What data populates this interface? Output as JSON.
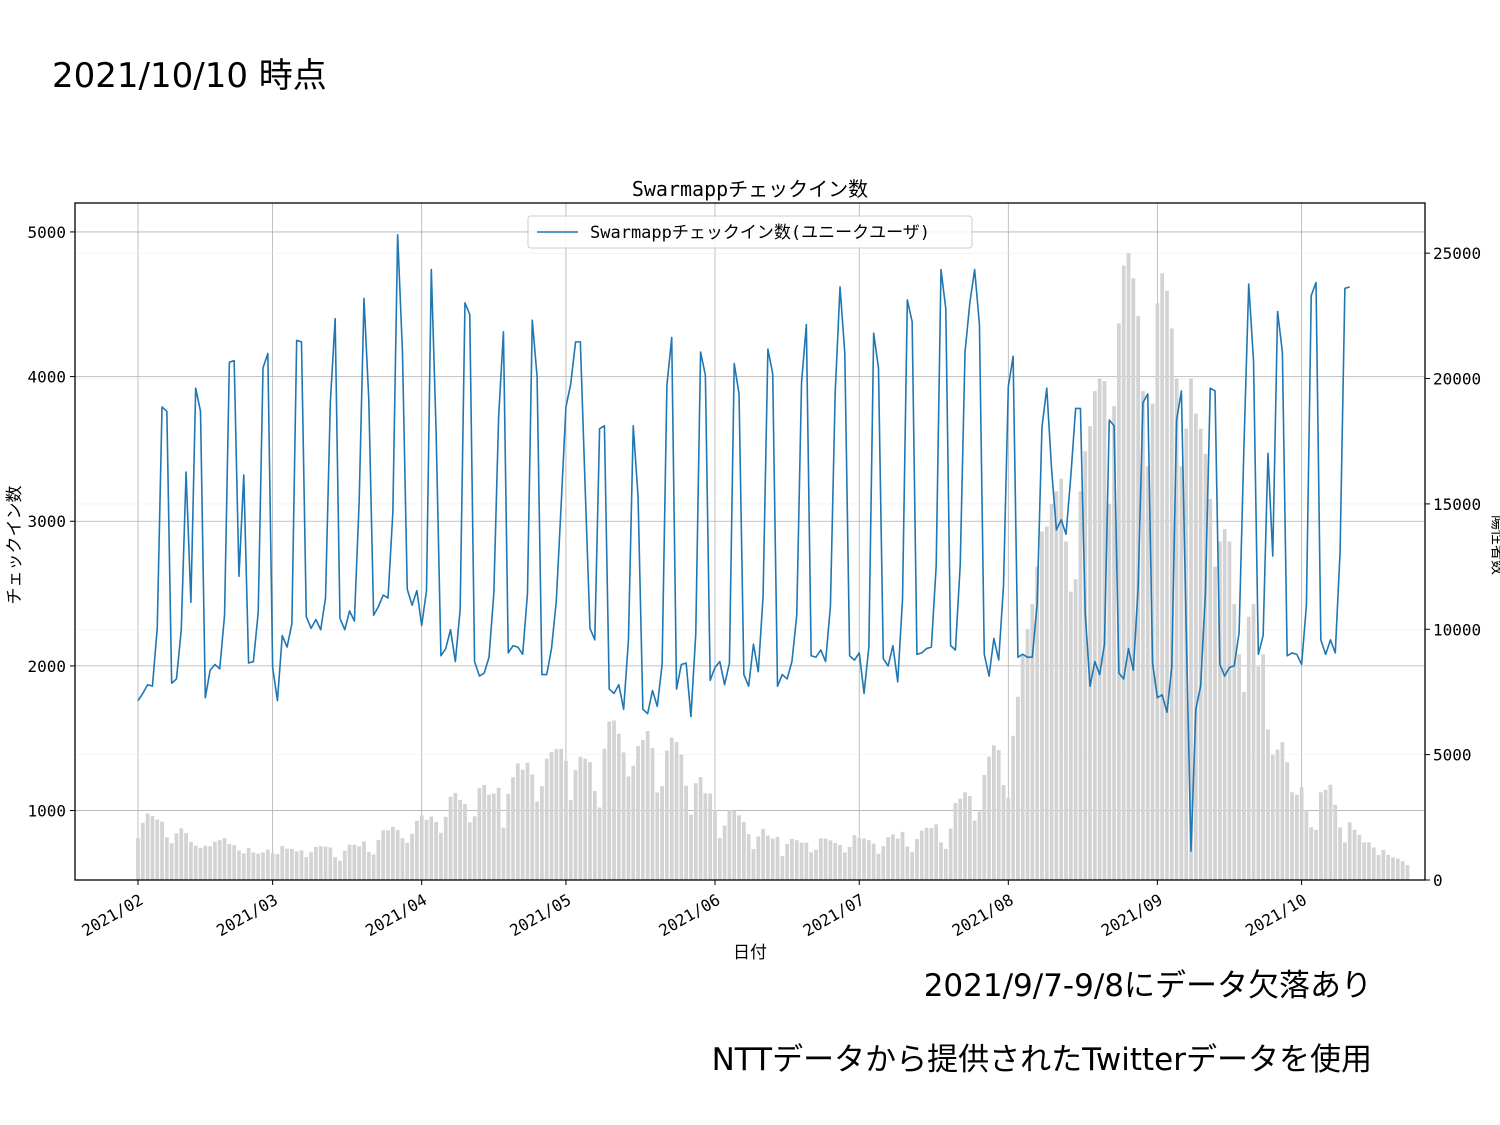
{
  "slide": {
    "title": "2021/10/10 時点",
    "note_missing": "2021/9/7-9/8にデータ欠落あり",
    "note_source": "NTTデータから提供されたTwitterデータを使用"
  },
  "chart_data": {
    "type": "line+bar",
    "title": "Swarmappチェックイン数",
    "xlabel": "日付",
    "ylabel_left": "チェックイン数",
    "ylabel_right": "陽性者数",
    "legend": [
      "Swarmappチェックイン数(ユニークユーザ)"
    ],
    "legend_position": "top-center",
    "grid": true,
    "start_date": "2021-02-01",
    "ylim_left": [
      520,
      5200
    ],
    "ylim_right": [
      0,
      27000
    ],
    "yticks_left": [
      1000,
      2000,
      3000,
      4000,
      5000
    ],
    "yticks_right": [
      0,
      5000,
      10000,
      15000,
      20000,
      25000
    ],
    "xtick_labels": [
      "2021/02",
      "2021/03",
      "2021/04",
      "2021/05",
      "2021/06",
      "2021/07",
      "2021/08",
      "2021/09",
      "2021/10"
    ],
    "xtick_dates": [
      "2021-02-01",
      "2021-03-01",
      "2021-04-01",
      "2021-05-01",
      "2021-06-01",
      "2021-07-01",
      "2021-08-01",
      "2021-09-01",
      "2021-10-01"
    ],
    "colors": {
      "line": "#1f77b4",
      "bars": "#d3d3d3",
      "grid": "#b0b0b0"
    },
    "series": [
      {
        "name": "Swarmappチェックイン数(ユニークユーザ)",
        "kind": "line",
        "axis": "left",
        "values": [
          1760,
          1810,
          1870,
          1860,
          2260,
          3790,
          3760,
          1880,
          1910,
          2250,
          3340,
          2440,
          3920,
          3760,
          1780,
          1970,
          2010,
          1980,
          2350,
          4100,
          4110,
          2620,
          3320,
          2020,
          2030,
          2370,
          4060,
          4160,
          1990,
          1760,
          2210,
          2130,
          2290,
          4250,
          4240,
          2340,
          2260,
          2320,
          2250,
          2470,
          3820,
          4400,
          2330,
          2250,
          2380,
          2310,
          3140,
          4540,
          3840,
          2350,
          2410,
          2490,
          2470,
          3060,
          4980,
          4170,
          2530,
          2420,
          2520,
          2280,
          2520,
          4740,
          3620,
          2070,
          2120,
          2250,
          2030,
          2390,
          4510,
          4430,
          2030,
          1930,
          1950,
          2060,
          2500,
          3720,
          4310,
          2090,
          2140,
          2130,
          2080,
          2500,
          4390,
          4000,
          1940,
          1940,
          2120,
          2450,
          3110,
          3790,
          3950,
          4240,
          4240,
          3230,
          2260,
          2180,
          3640,
          3660,
          1840,
          1810,
          1870,
          1700,
          2180,
          3660,
          3170,
          1700,
          1670,
          1830,
          1720,
          2010,
          3940,
          4270,
          1840,
          2010,
          2020,
          1650,
          2220,
          4170,
          4010,
          1900,
          1990,
          2030,
          1870,
          2020,
          4090,
          3880,
          1940,
          1860,
          2150,
          1960,
          2480,
          4190,
          4020,
          1860,
          1940,
          1910,
          2030,
          2350,
          3960,
          4360,
          2070,
          2060,
          2110,
          2030,
          2410,
          3890,
          4620,
          4160,
          2070,
          2040,
          2090,
          1810,
          2130,
          4300,
          4060,
          2050,
          2000,
          2140,
          1890,
          2460,
          4530,
          4380,
          2080,
          2090,
          2120,
          2130,
          2690,
          4740,
          4470,
          2140,
          2110,
          2700,
          4170,
          4510,
          4740,
          4360,
          2080,
          1930,
          2190,
          2040,
          2550,
          3930,
          4140,
          2060,
          2080,
          2060,
          2060,
          2430,
          3650,
          3920,
          3360,
          2940,
          3010,
          2910,
          3310,
          3780,
          3780,
          2360,
          1860,
          2030,
          1940,
          2150,
          3700,
          3660,
          1950,
          1910,
          2120,
          1970,
          2540,
          3820,
          3880,
          2020,
          1780,
          1800,
          1680,
          1990,
          3700,
          3900,
          2250,
          720,
          1700,
          1860,
          2510,
          3920,
          3900,
          2010,
          1930,
          1990,
          2000,
          2230,
          3510,
          4640,
          4110,
          2080,
          2210,
          3470,
          2760,
          4450,
          4170,
          2070,
          2090,
          2080,
          2010,
          2420,
          4560,
          4650,
          2180,
          2080,
          2180,
          2090,
          2790,
          4610,
          4620
        ]
      },
      {
        "name": "陽性者数",
        "kind": "bar",
        "axis": "right",
        "values": [
          1680,
          2280,
          2650,
          2550,
          2410,
          2330,
          1700,
          1470,
          1860,
          2060,
          1870,
          1520,
          1370,
          1280,
          1370,
          1350,
          1530,
          1590,
          1670,
          1440,
          1390,
          1180,
          1060,
          1280,
          1100,
          1050,
          1100,
          1210,
          1070,
          1030,
          1360,
          1250,
          1240,
          1140,
          1180,
          920,
          1110,
          1320,
          1350,
          1330,
          1300,
          910,
          770,
          1170,
          1410,
          1410,
          1340,
          1540,
          1120,
          1020,
          1600,
          1980,
          1980,
          2120,
          1990,
          1670,
          1480,
          1840,
          2360,
          2570,
          2400,
          2530,
          2310,
          1880,
          2520,
          3320,
          3470,
          3190,
          3030,
          2300,
          2540,
          3660,
          3790,
          3400,
          3450,
          3680,
          2090,
          3440,
          4100,
          4650,
          4400,
          4680,
          4210,
          3130,
          3740,
          4840,
          5110,
          5220,
          5230,
          4750,
          3190,
          4380,
          4920,
          4840,
          4700,
          3550,
          2890,
          5230,
          6320,
          6360,
          5830,
          5090,
          4130,
          4560,
          5340,
          5580,
          5940,
          5270,
          3490,
          3740,
          5160,
          5680,
          5500,
          5010,
          3760,
          2610,
          3860,
          4100,
          3460,
          3450,
          2780,
          1680,
          2170,
          2790,
          2760,
          2580,
          2310,
          1830,
          1230,
          1740,
          2030,
          1770,
          1650,
          1720,
          960,
          1440,
          1640,
          1590,
          1490,
          1490,
          1110,
          1200,
          1660,
          1650,
          1580,
          1480,
          1400,
          1100,
          1320,
          1790,
          1680,
          1650,
          1590,
          1450,
          1050,
          1350,
          1710,
          1820,
          1650,
          1920,
          1340,
          1110,
          1640,
          1970,
          2080,
          2070,
          2220,
          1500,
          1240,
          2050,
          3070,
          3240,
          3500,
          3350,
          2370,
          2730,
          4190,
          4920,
          5370,
          5180,
          3790,
          3280,
          5750,
          7310,
          9000,
          10000,
          11000,
          12500,
          13900,
          14100,
          15000,
          15500,
          16000,
          13500,
          11500,
          12000,
          15500,
          17100,
          18100,
          19500,
          20000,
          19900,
          15000,
          18900,
          22200,
          24500,
          25000,
          24000,
          22500,
          19500,
          16500,
          19000,
          23000,
          24200,
          23500,
          22000,
          20000,
          16500,
          18000,
          20000,
          18600,
          18000,
          17000,
          15200,
          12500,
          13500,
          14000,
          13500,
          11000,
          9000,
          7500,
          10500,
          11000,
          8500,
          9000,
          6000,
          5000,
          5200,
          5500,
          4700,
          3500,
          3400,
          3700,
          2800,
          2100,
          2000,
          3500,
          3600,
          3800,
          3000,
          2100,
          1500,
          2300,
          2000,
          1800,
          1500,
          1500,
          1300,
          1000,
          1200,
          1000,
          900,
          850,
          750,
          600
        ]
      }
    ]
  }
}
